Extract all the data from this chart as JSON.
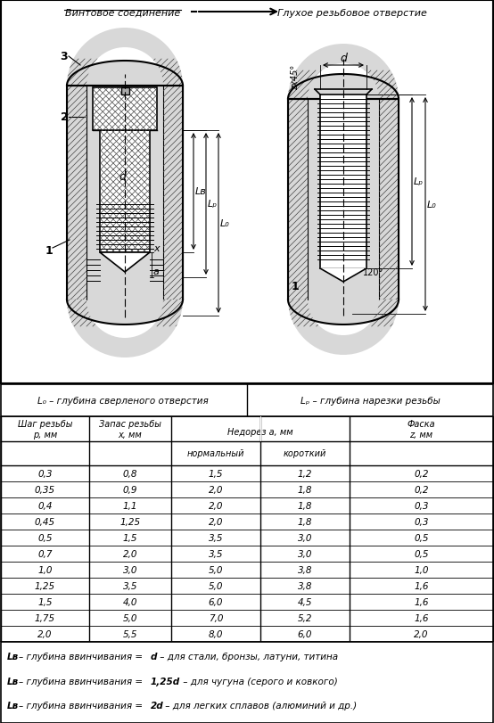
{
  "title_left": "Винтовое соединение",
  "title_right": "Глухое резьбовое отверстие",
  "footer_lines": [
    [
      "L",
      "в",
      "– глубина ввинчивания = ",
      "d",
      " – для стали, бронзы, латуни, титина"
    ],
    [
      "L",
      "в",
      "– глубина ввинчивания = ",
      "1,25d",
      " – для чугуна (серого и ковкого)"
    ],
    [
      "L",
      "в",
      "– глубина ввинчивания = ",
      "2d",
      " – для легких сплавов (алюминий и др.)"
    ]
  ],
  "rows": [
    [
      "0,3",
      "0,8",
      "1,5",
      "1,2",
      "0,2"
    ],
    [
      "0,35",
      "0,9",
      "2,0",
      "1,8",
      "0,2"
    ],
    [
      "0,4",
      "1,1",
      "2,0",
      "1,8",
      "0,3"
    ],
    [
      "0,45",
      "1,25",
      "2,0",
      "1,8",
      "0,3"
    ],
    [
      "0,5",
      "1,5",
      "3,5",
      "3,0",
      "0,5"
    ],
    [
      "0,7",
      "2,0",
      "3,5",
      "3,0",
      "0,5"
    ],
    [
      "1,0",
      "3,0",
      "5,0",
      "3,8",
      "1,0"
    ],
    [
      "1,25",
      "3,5",
      "5,0",
      "3,8",
      "1,6"
    ],
    [
      "1,5",
      "4,0",
      "6,0",
      "4,5",
      "1,6"
    ],
    [
      "1,75",
      "5,0",
      "7,0",
      "5,2",
      "1,6"
    ],
    [
      "2,0",
      "5,5",
      "8,0",
      "6,0",
      "2,0"
    ]
  ],
  "bg_color": "#ffffff",
  "hatch_color": "#444444",
  "line_color": "#000000"
}
